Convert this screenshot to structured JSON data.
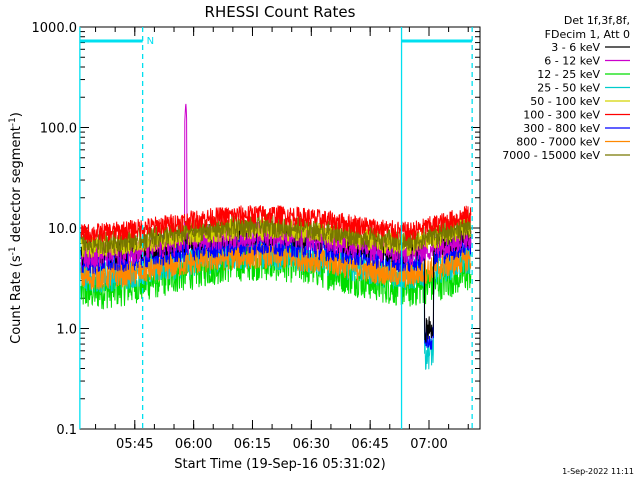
{
  "chart_data": {
    "type": "line",
    "title": "RHESSI Count Rates",
    "xlabel": "Start Time (19-Sep-16 05:31:02)",
    "ylabel_main": "Count Rate (s",
    "ylabel_sup1": "-1",
    "ylabel_mid": " detector segment",
    "ylabel_sup2": "-1",
    "ylabel_end": ")",
    "y_scale": "log",
    "ylim": [
      0.1,
      1000
    ],
    "xlim": [
      "05:31:02",
      "07:13:00"
    ],
    "x_ticks": [
      "05:45",
      "06:00",
      "06:15",
      "06:30",
      "06:45",
      "07:00"
    ],
    "y_ticks": [
      "0.1",
      "1.0",
      "10.0",
      "100.0",
      "1000.0"
    ],
    "grid": false,
    "legend_placement": "top-right",
    "legend_header": [
      "Det 1f,3f,8f,",
      "FDecim 1, Att 0"
    ],
    "footer_date": "1-Sep-2022 11:11",
    "night_marker_label": "N",
    "series": [
      {
        "name": "3 - 6 keV",
        "color": "#000000",
        "base": 5.6,
        "amp": 2.4,
        "spread": 1.35
      },
      {
        "name": "6 - 12 keV",
        "color": "#cc00cc",
        "base": 5.3,
        "amp": 2.5,
        "spread": 1.35
      },
      {
        "name": "12 - 25 keV",
        "color": "#00dd00",
        "base": 2.3,
        "amp": 4.0,
        "spread": 1.55
      },
      {
        "name": "25 - 50 keV",
        "color": "#00cccc",
        "base": 3.2,
        "amp": 3.0,
        "spread": 1.45
      },
      {
        "name": "50 - 100 keV",
        "color": "#d4d400",
        "base": 6.5,
        "amp": 2.0,
        "spread": 1.3
      },
      {
        "name": "100 - 300 keV",
        "color": "#ff0000",
        "base": 8.8,
        "amp": 2.2,
        "spread": 1.25
      },
      {
        "name": "300 - 800 keV",
        "color": "#0000ff",
        "base": 4.6,
        "amp": 2.2,
        "spread": 1.35
      },
      {
        "name": "800 - 7000 keV",
        "color": "#ff8800",
        "base": 3.2,
        "amp": 2.6,
        "spread": 1.35
      },
      {
        "name": "7000 - 15000 keV",
        "color": "#777700",
        "base": 7.0,
        "amp": 2.0,
        "spread": 1.3
      }
    ],
    "features": {
      "spike_6_12": {
        "time": "05:58",
        "peak": 180
      },
      "dip_near": "07:00",
      "cosine_peak": "06:17",
      "period_minutes": 95
    },
    "saa_intervals": [
      {
        "start": "05:31",
        "end": "05:47"
      },
      {
        "start": "06:53",
        "end": "07:11"
      }
    ]
  }
}
